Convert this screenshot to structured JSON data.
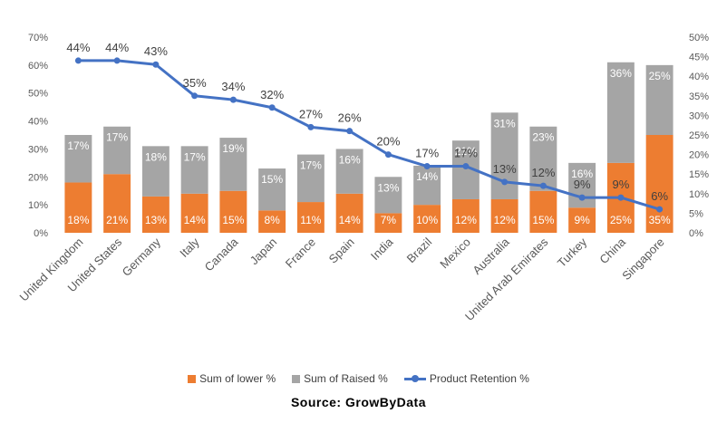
{
  "chart_data": {
    "type": "bar",
    "stacked": true,
    "categories": [
      "United Kingdom",
      "United States",
      "Germany",
      "Italy",
      "Canada",
      "Japan",
      "France",
      "Spain",
      "India",
      "Brazil",
      "Mexico",
      "Australia",
      "United Arab Emirates",
      "Turkey",
      "China",
      "Singapore"
    ],
    "series": [
      {
        "name": "Sum of lower %",
        "kind": "bar",
        "axis": "left",
        "color": "#ED7D31",
        "values": [
          18,
          21,
          13,
          14,
          15,
          8,
          11,
          14,
          7,
          10,
          12,
          12,
          15,
          9,
          25,
          35
        ]
      },
      {
        "name": "Sum of Raised %",
        "kind": "bar",
        "axis": "left",
        "color": "#A5A5A5",
        "values": [
          17,
          17,
          18,
          17,
          19,
          15,
          17,
          16,
          13,
          14,
          21,
          31,
          23,
          16,
          36,
          25
        ]
      },
      {
        "name": "Product Retention %",
        "kind": "line",
        "axis": "right",
        "color": "#4472C4",
        "values": [
          44,
          44,
          43,
          35,
          34,
          32,
          27,
          26,
          20,
          17,
          17,
          13,
          12,
          9,
          9,
          6
        ]
      }
    ],
    "ylim_left": [
      0,
      70
    ],
    "yticks_left": [
      "0%",
      "10%",
      "20%",
      "30%",
      "40%",
      "50%",
      "60%",
      "70%"
    ],
    "ylim_right": [
      0,
      50
    ],
    "yticks_right": [
      "0%",
      "5%",
      "10%",
      "15%",
      "20%",
      "25%",
      "30%",
      "35%",
      "40%",
      "45%",
      "50%"
    ],
    "grid": false,
    "legend_position": "bottom"
  },
  "source_text": "Source: GrowByData"
}
